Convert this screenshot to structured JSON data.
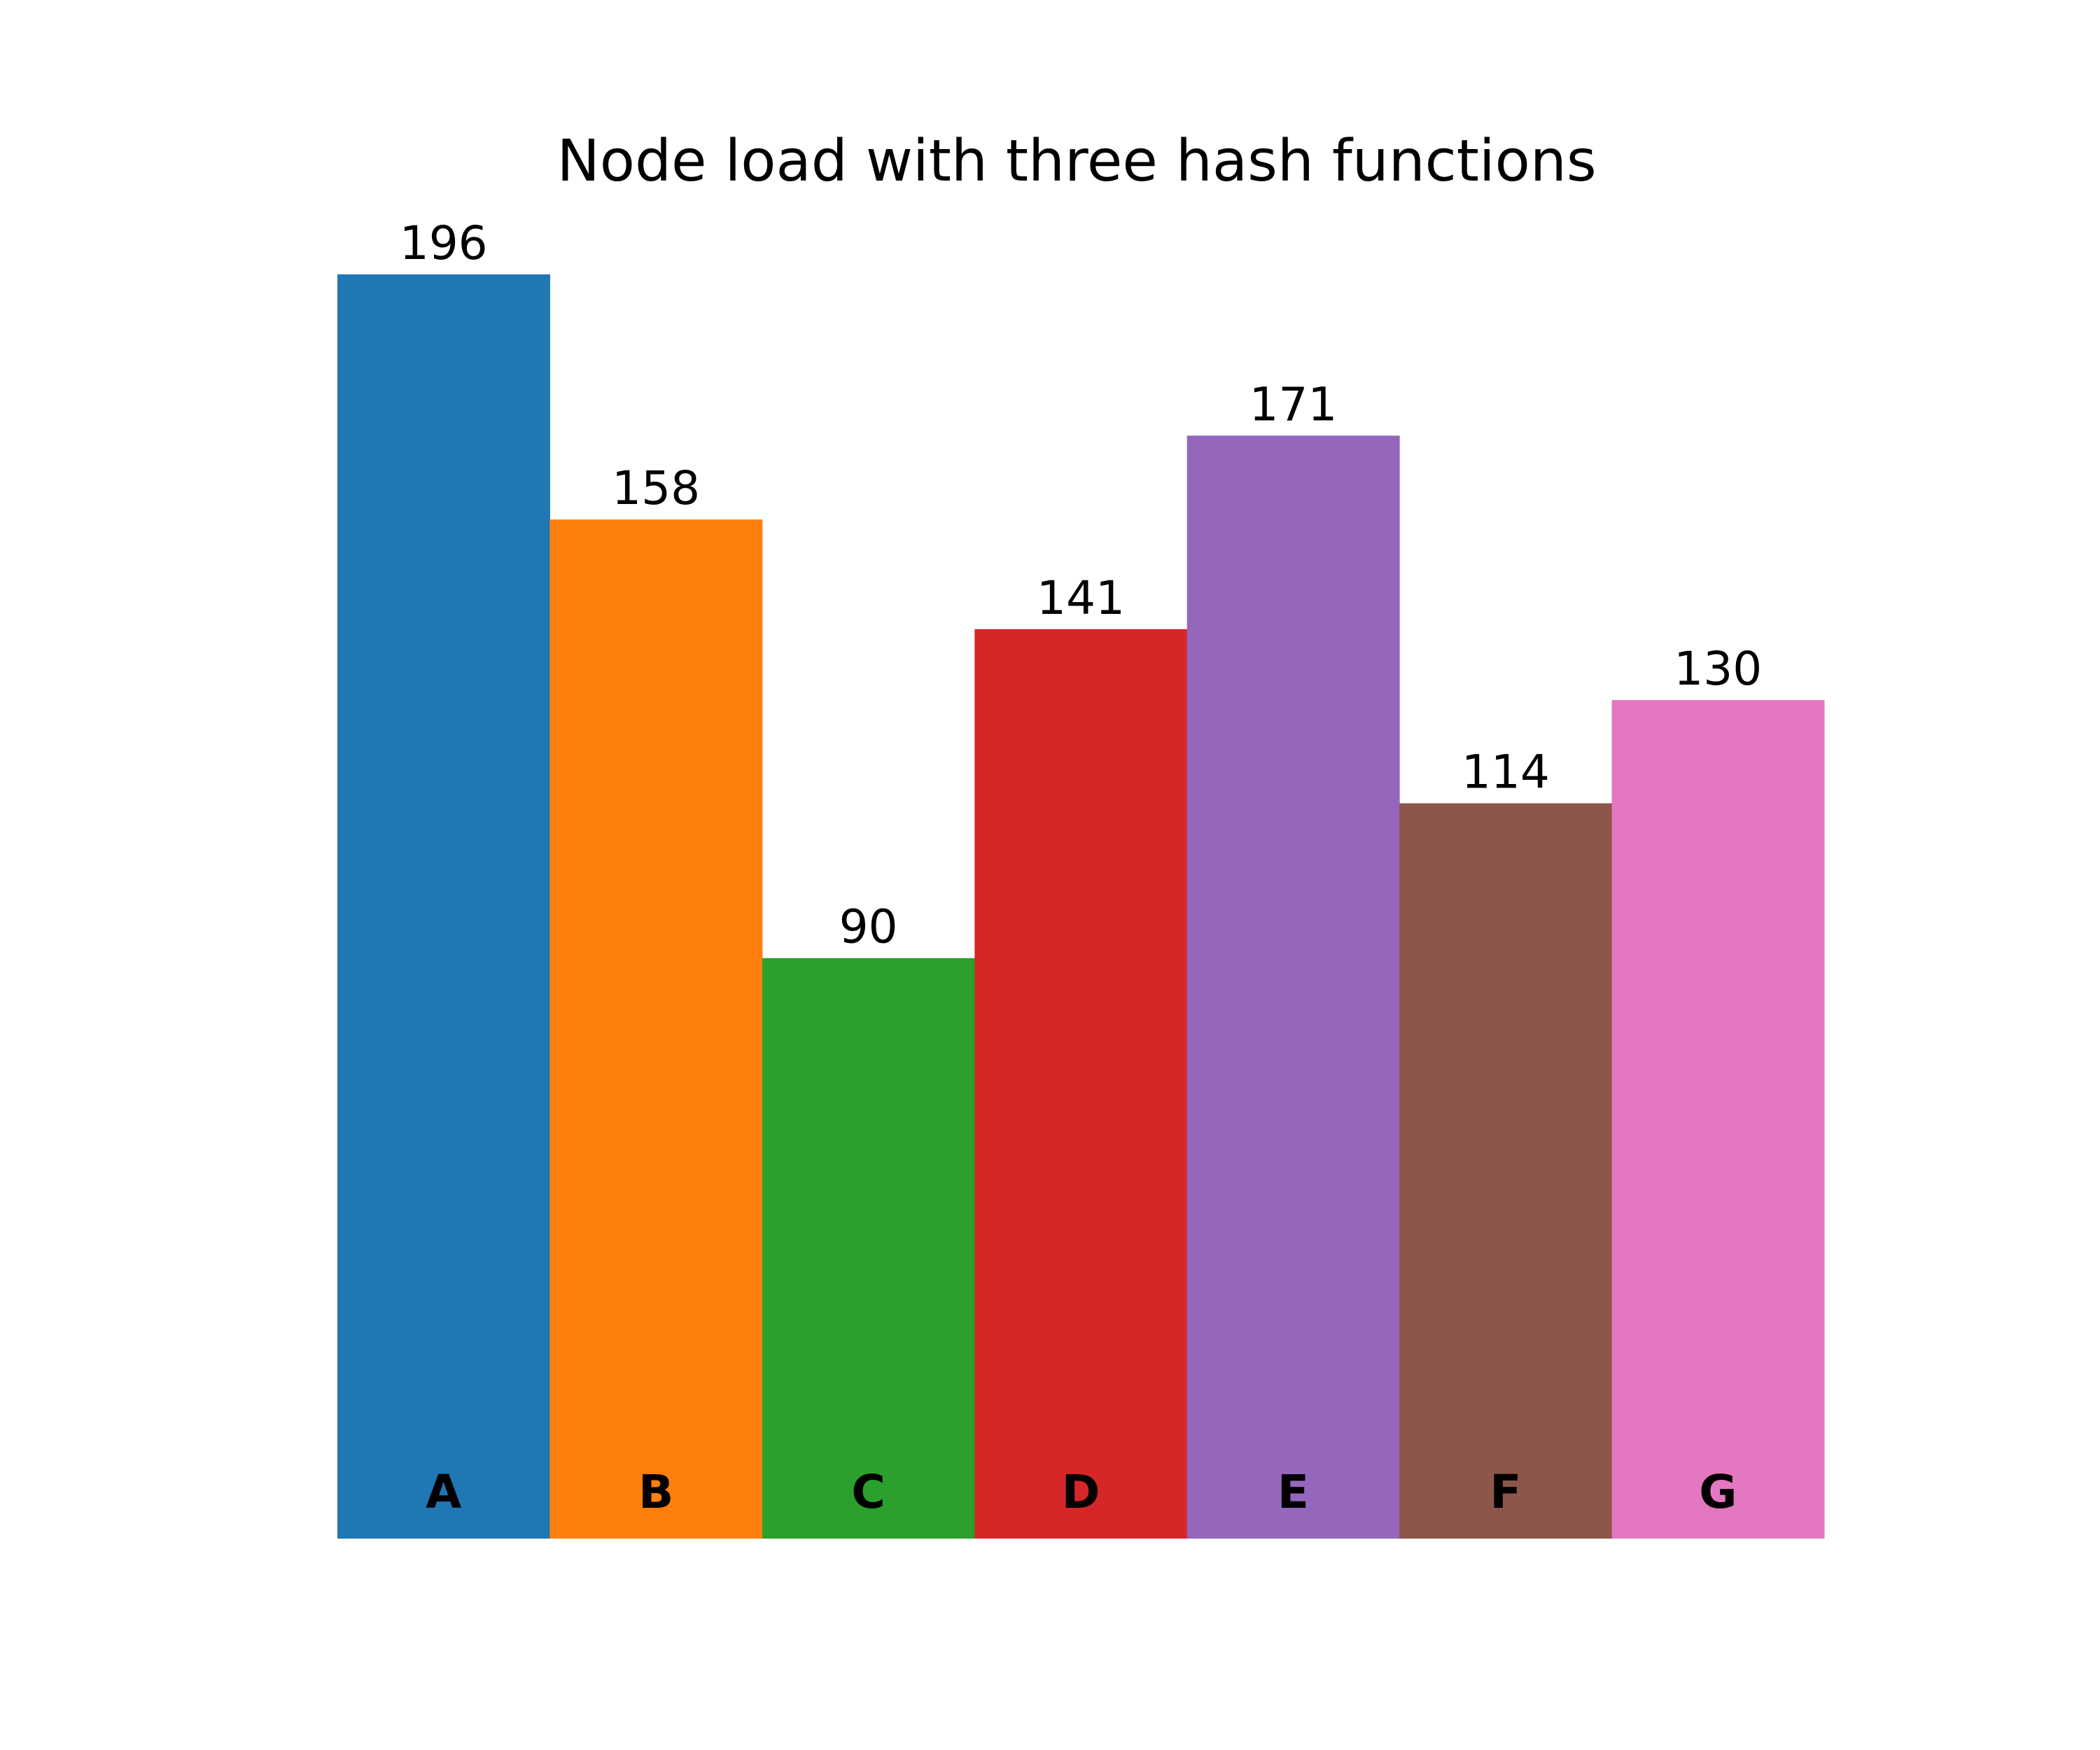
{
  "chart_data": {
    "type": "bar",
    "title": "Node load with three hash functions",
    "xlabel": "",
    "ylabel": "",
    "categories": [
      "A",
      "B",
      "C",
      "D",
      "E",
      "F",
      "G"
    ],
    "values": [
      196,
      158,
      90,
      141,
      171,
      114,
      130
    ],
    "colors": [
      "#1f77b4",
      "#ff7f0e",
      "#2ca02c",
      "#d62728",
      "#9467bd",
      "#8c564b",
      "#e377c2"
    ],
    "ylim": [
      0,
      196
    ],
    "grid": false,
    "legend": "none",
    "data_labels": true,
    "category_labels_inside_bars": true
  }
}
